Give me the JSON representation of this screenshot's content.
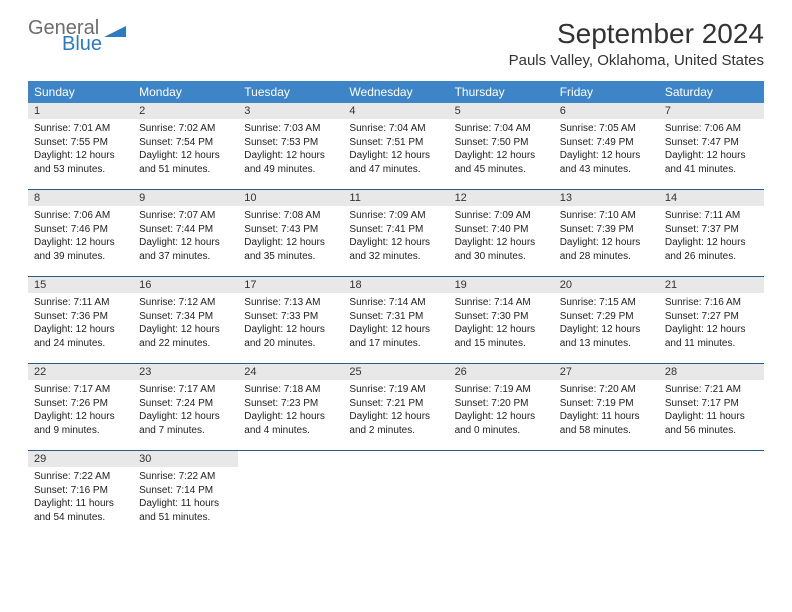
{
  "logo": {
    "line1": "General",
    "line2": "Blue",
    "color_gray": "#6d6d6d",
    "color_blue": "#2a7bbf"
  },
  "header": {
    "title": "September 2024",
    "location": "Pauls Valley, Oklahoma, United States"
  },
  "styling": {
    "header_bg": "#3d85c6",
    "header_text": "#ffffff",
    "daynum_bg": "#e8e8e8",
    "row_border": "#2a5a8a",
    "body_text": "#222222",
    "title_fontsize": 28,
    "location_fontsize": 15,
    "dayheader_fontsize": 12,
    "cell_fontsize": 10
  },
  "weekdays": [
    "Sunday",
    "Monday",
    "Tuesday",
    "Wednesday",
    "Thursday",
    "Friday",
    "Saturday"
  ],
  "days": [
    {
      "n": "1",
      "sr": "7:01 AM",
      "ss": "7:55 PM",
      "dl": "12 hours and 53 minutes."
    },
    {
      "n": "2",
      "sr": "7:02 AM",
      "ss": "7:54 PM",
      "dl": "12 hours and 51 minutes."
    },
    {
      "n": "3",
      "sr": "7:03 AM",
      "ss": "7:53 PM",
      "dl": "12 hours and 49 minutes."
    },
    {
      "n": "4",
      "sr": "7:04 AM",
      "ss": "7:51 PM",
      "dl": "12 hours and 47 minutes."
    },
    {
      "n": "5",
      "sr": "7:04 AM",
      "ss": "7:50 PM",
      "dl": "12 hours and 45 minutes."
    },
    {
      "n": "6",
      "sr": "7:05 AM",
      "ss": "7:49 PM",
      "dl": "12 hours and 43 minutes."
    },
    {
      "n": "7",
      "sr": "7:06 AM",
      "ss": "7:47 PM",
      "dl": "12 hours and 41 minutes."
    },
    {
      "n": "8",
      "sr": "7:06 AM",
      "ss": "7:46 PM",
      "dl": "12 hours and 39 minutes."
    },
    {
      "n": "9",
      "sr": "7:07 AM",
      "ss": "7:44 PM",
      "dl": "12 hours and 37 minutes."
    },
    {
      "n": "10",
      "sr": "7:08 AM",
      "ss": "7:43 PM",
      "dl": "12 hours and 35 minutes."
    },
    {
      "n": "11",
      "sr": "7:09 AM",
      "ss": "7:41 PM",
      "dl": "12 hours and 32 minutes."
    },
    {
      "n": "12",
      "sr": "7:09 AM",
      "ss": "7:40 PM",
      "dl": "12 hours and 30 minutes."
    },
    {
      "n": "13",
      "sr": "7:10 AM",
      "ss": "7:39 PM",
      "dl": "12 hours and 28 minutes."
    },
    {
      "n": "14",
      "sr": "7:11 AM",
      "ss": "7:37 PM",
      "dl": "12 hours and 26 minutes."
    },
    {
      "n": "15",
      "sr": "7:11 AM",
      "ss": "7:36 PM",
      "dl": "12 hours and 24 minutes."
    },
    {
      "n": "16",
      "sr": "7:12 AM",
      "ss": "7:34 PM",
      "dl": "12 hours and 22 minutes."
    },
    {
      "n": "17",
      "sr": "7:13 AM",
      "ss": "7:33 PM",
      "dl": "12 hours and 20 minutes."
    },
    {
      "n": "18",
      "sr": "7:14 AM",
      "ss": "7:31 PM",
      "dl": "12 hours and 17 minutes."
    },
    {
      "n": "19",
      "sr": "7:14 AM",
      "ss": "7:30 PM",
      "dl": "12 hours and 15 minutes."
    },
    {
      "n": "20",
      "sr": "7:15 AM",
      "ss": "7:29 PM",
      "dl": "12 hours and 13 minutes."
    },
    {
      "n": "21",
      "sr": "7:16 AM",
      "ss": "7:27 PM",
      "dl": "12 hours and 11 minutes."
    },
    {
      "n": "22",
      "sr": "7:17 AM",
      "ss": "7:26 PM",
      "dl": "12 hours and 9 minutes."
    },
    {
      "n": "23",
      "sr": "7:17 AM",
      "ss": "7:24 PM",
      "dl": "12 hours and 7 minutes."
    },
    {
      "n": "24",
      "sr": "7:18 AM",
      "ss": "7:23 PM",
      "dl": "12 hours and 4 minutes."
    },
    {
      "n": "25",
      "sr": "7:19 AM",
      "ss": "7:21 PM",
      "dl": "12 hours and 2 minutes."
    },
    {
      "n": "26",
      "sr": "7:19 AM",
      "ss": "7:20 PM",
      "dl": "12 hours and 0 minutes."
    },
    {
      "n": "27",
      "sr": "7:20 AM",
      "ss": "7:19 PM",
      "dl": "11 hours and 58 minutes."
    },
    {
      "n": "28",
      "sr": "7:21 AM",
      "ss": "7:17 PM",
      "dl": "11 hours and 56 minutes."
    },
    {
      "n": "29",
      "sr": "7:22 AM",
      "ss": "7:16 PM",
      "dl": "11 hours and 54 minutes."
    },
    {
      "n": "30",
      "sr": "7:22 AM",
      "ss": "7:14 PM",
      "dl": "11 hours and 51 minutes."
    }
  ],
  "labels": {
    "sunrise": "Sunrise:",
    "sunset": "Sunset:",
    "daylight": "Daylight:"
  }
}
